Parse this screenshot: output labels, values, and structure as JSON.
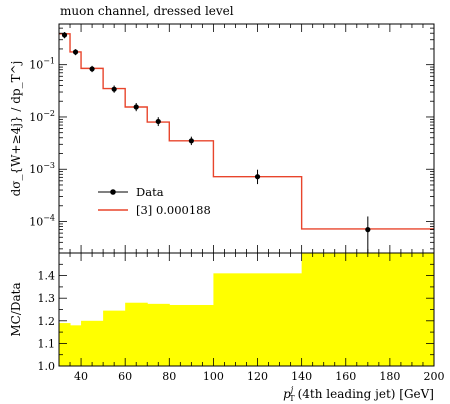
{
  "chart_data": [
    {
      "type": "line",
      "title": "muon channel, dressed level",
      "ylabel": "dσ_{W+≥4j} / dp_T^j",
      "xlabel": "",
      "xlim": [
        30,
        200
      ],
      "ylim": [
        2.5e-05,
        0.6
      ],
      "yscale": "log",
      "y_ticks": [
        {
          "value": 0.1,
          "exp": "−1"
        },
        {
          "value": 0.01,
          "exp": "−2"
        },
        {
          "value": 0.001,
          "exp": "−3"
        },
        {
          "value": 0.0001,
          "exp": "−4"
        }
      ],
      "legend_position": "center-left",
      "series": [
        {
          "name": "Data",
          "kind": "points",
          "color": "#000000",
          "points": [
            {
              "x": 32.5,
              "y": 0.37,
              "ylow": 0.32,
              "yhigh": 0.42
            },
            {
              "x": 37.5,
              "y": 0.175,
              "ylow": 0.152,
              "yhigh": 0.198
            },
            {
              "x": 45,
              "y": 0.083,
              "ylow": 0.072,
              "yhigh": 0.095
            },
            {
              "x": 55,
              "y": 0.034,
              "ylow": 0.029,
              "yhigh": 0.04
            },
            {
              "x": 65,
              "y": 0.0155,
              "ylow": 0.0129,
              "yhigh": 0.0185
            },
            {
              "x": 75,
              "y": 0.0082,
              "ylow": 0.0067,
              "yhigh": 0.0099
            },
            {
              "x": 90,
              "y": 0.0035,
              "ylow": 0.0029,
              "yhigh": 0.0042
            },
            {
              "x": 120,
              "y": 0.00072,
              "ylow": 0.00052,
              "yhigh": 0.00098
            },
            {
              "x": 170,
              "y": 7e-05,
              "ylow": 1.5e-05,
              "yhigh": 0.000125
            }
          ]
        },
        {
          "name": "[3] 0.000188",
          "kind": "histogram",
          "color": "#e8452c",
          "bins": [
            {
              "x0": 30,
              "x1": 35,
              "y": 0.39
            },
            {
              "x0": 35,
              "x1": 40,
              "y": 0.175
            },
            {
              "x0": 40,
              "x1": 50,
              "y": 0.085
            },
            {
              "x0": 50,
              "x1": 60,
              "y": 0.035
            },
            {
              "x0": 60,
              "x1": 70,
              "y": 0.0155
            },
            {
              "x0": 70,
              "x1": 80,
              "y": 0.008
            },
            {
              "x0": 80,
              "x1": 100,
              "y": 0.0035
            },
            {
              "x0": 100,
              "x1": 140,
              "y": 0.00072
            },
            {
              "x0": 140,
              "x1": 200,
              "y": 7.2e-05
            }
          ]
        }
      ]
    },
    {
      "type": "area",
      "xlabel_main": "p",
      "xlabel_sub": "T",
      "xlabel_sup": "j",
      "xlabel_rest": "(4th leading jet) [GeV]",
      "ylabel": "MC/Data",
      "xlim": [
        30,
        200
      ],
      "ylim": [
        1.0,
        1.5
      ],
      "x_ticks": [
        40,
        60,
        80,
        100,
        120,
        140,
        160,
        180,
        200
      ],
      "y_ticks": [
        "1.0",
        "1.1",
        "1.2",
        "1.3",
        "1.4"
      ],
      "band_color": "#ffff00",
      "band": [
        {
          "x0": 30,
          "x1": 35,
          "y": 1.19
        },
        {
          "x0": 35,
          "x1": 40,
          "y": 1.18
        },
        {
          "x0": 40,
          "x1": 50,
          "y": 1.2
        },
        {
          "x0": 50,
          "x1": 60,
          "y": 1.245
        },
        {
          "x0": 60,
          "x1": 70,
          "y": 1.28
        },
        {
          "x0": 70,
          "x1": 80,
          "y": 1.275
        },
        {
          "x0": 80,
          "x1": 100,
          "y": 1.27
        },
        {
          "x0": 100,
          "x1": 140,
          "y": 1.41
        },
        {
          "x0": 140,
          "x1": 200,
          "y": 1.5
        }
      ]
    }
  ]
}
